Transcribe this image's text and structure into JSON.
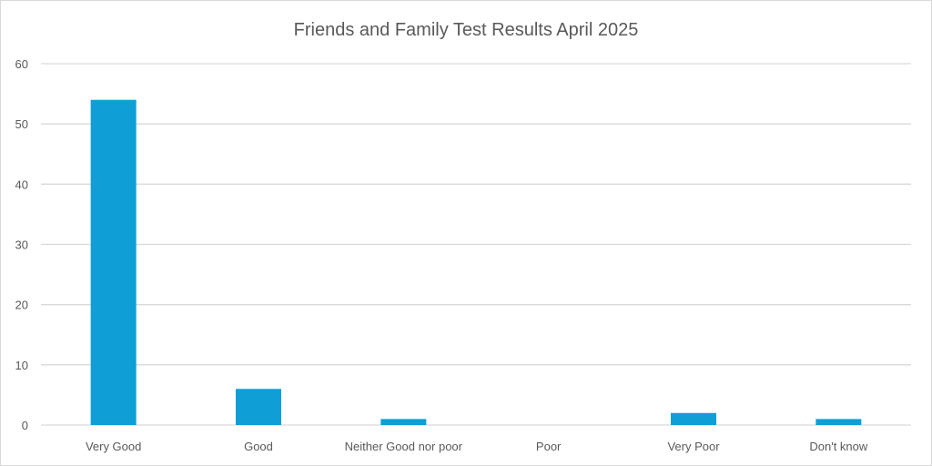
{
  "chart_data": {
    "type": "bar",
    "title": "Friends and Family Test Results April 2025",
    "categories": [
      "Very Good",
      "Good",
      "Neither Good nor poor",
      "Poor",
      "Very Poor",
      "Don't know"
    ],
    "values": [
      54,
      6,
      1,
      0,
      2,
      1
    ],
    "xlabel": "",
    "ylabel": "",
    "ylim": [
      0,
      60
    ],
    "yticks": [
      0,
      10,
      20,
      30,
      40,
      50,
      60
    ],
    "grid": true,
    "legend": "none",
    "bar_color": "#0F9ED5"
  }
}
